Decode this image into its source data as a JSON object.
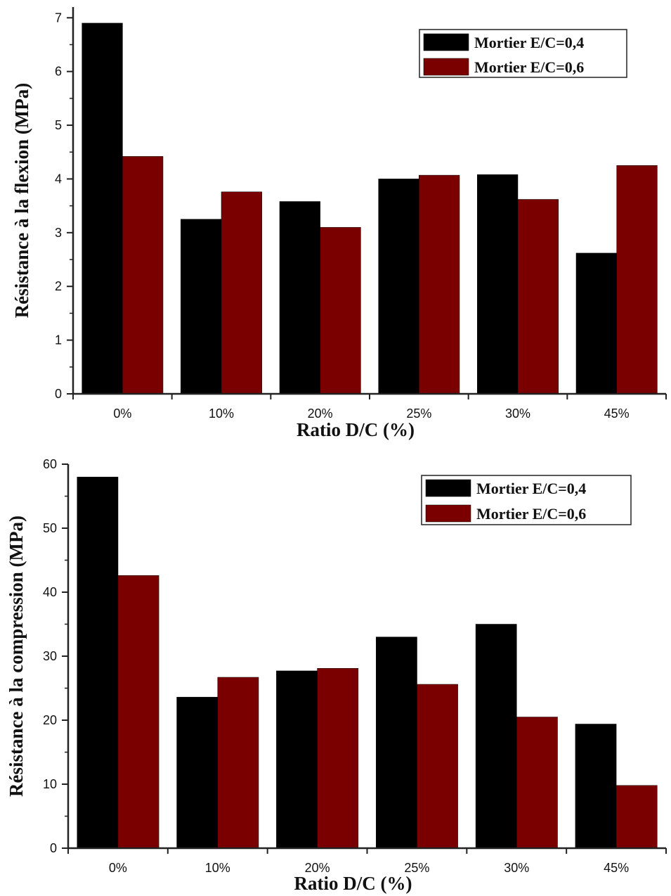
{
  "chart_data": [
    {
      "type": "bar",
      "categories": [
        "0%",
        "10%",
        "20%",
        "25%",
        "30%",
        "45%"
      ],
      "series": [
        {
          "name": "Mortier E/C=0,4",
          "color": "#000000",
          "values": [
            6.9,
            3.25,
            3.58,
            4.0,
            4.08,
            2.62
          ]
        },
        {
          "name": "Mortier E/C=0,6",
          "color": "#7a0000",
          "values": [
            4.42,
            3.76,
            3.1,
            4.07,
            3.62,
            4.25
          ]
        }
      ],
      "xlabel": "Ratio D/C (%)",
      "ylabel": "Résistance à la flexion (MPa)",
      "ylim": [
        0,
        7.2
      ],
      "yticks": [
        0,
        1,
        2,
        3,
        4,
        5,
        6,
        7
      ],
      "legend_position": "top-right",
      "grid": false
    },
    {
      "type": "bar",
      "categories": [
        "0%",
        "10%",
        "20%",
        "25%",
        "30%",
        "45%"
      ],
      "series": [
        {
          "name": "Mortier E/C=0,4",
          "color": "#000000",
          "values": [
            58.0,
            23.6,
            27.7,
            33.0,
            35.0,
            19.4
          ]
        },
        {
          "name": "Mortier E/C=0,6",
          "color": "#7a0000",
          "values": [
            42.6,
            26.7,
            28.1,
            25.6,
            20.5,
            9.8
          ]
        }
      ],
      "xlabel": "Ratio D/C (%)",
      "ylabel": "Résistance à la compression (MPa)",
      "ylim": [
        0,
        60
      ],
      "yticks": [
        0,
        10,
        20,
        30,
        40,
        50,
        60
      ],
      "legend_position": "top-right",
      "grid": false
    }
  ]
}
